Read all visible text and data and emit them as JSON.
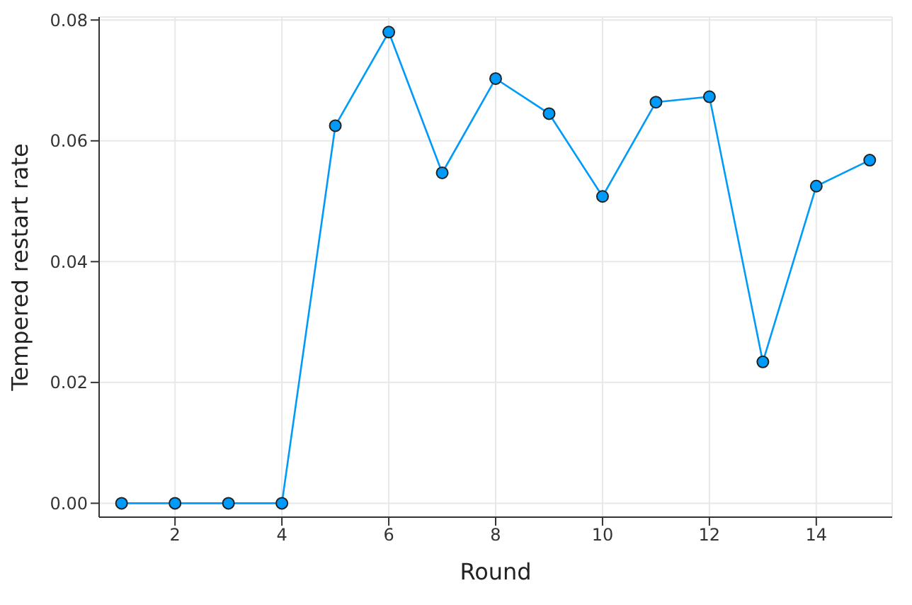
{
  "chart_data": {
    "type": "line",
    "xlabel": "Round",
    "ylabel": "Tempered restart rate",
    "x": [
      1,
      2,
      3,
      4,
      5,
      6,
      7,
      8,
      9,
      10,
      11,
      12,
      13,
      14,
      15
    ],
    "series": [
      {
        "color": "#009afa",
        "values": [
          0,
          0,
          0,
          0,
          0.0625,
          0.078,
          0.0547,
          0.0703,
          0.0645,
          0.0508,
          0.0664,
          0.0673,
          0.0234,
          0.0525,
          0.0568
        ]
      }
    ],
    "xlim": [
      0.58,
      15.42
    ],
    "xticks": [
      2,
      4,
      6,
      8,
      10,
      12,
      14
    ],
    "ylim": [
      -0.0023,
      0.0805
    ],
    "yticks": [
      {
        "value": 0,
        "label": "0.00"
      },
      {
        "value": 0.02,
        "label": "0.02"
      },
      {
        "value": 0.04,
        "label": "0.04"
      },
      {
        "value": 0.06,
        "label": "0.06"
      },
      {
        "value": 0.08,
        "label": "0.08"
      }
    ],
    "grid": true,
    "marker": "circle",
    "line_style": "solid"
  }
}
